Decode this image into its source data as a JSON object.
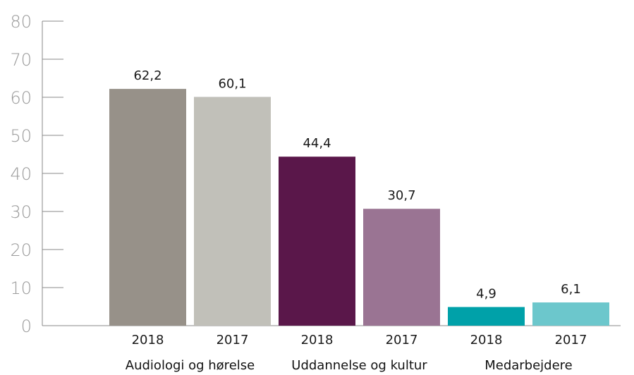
{
  "chart_data": {
    "type": "bar",
    "ylim": [
      0,
      80
    ],
    "yticks": [
      "0",
      "10",
      "20",
      "30",
      "40",
      "50",
      "60",
      "70",
      "80"
    ],
    "grid": false,
    "groups": [
      {
        "label": "Audiologi og hørelse",
        "bars": [
          {
            "year": "2018",
            "value": 62.2,
            "label": "62,2",
            "color": "#979189"
          },
          {
            "year": "2017",
            "value": 60.1,
            "label": "60,1",
            "color": "#c1c0b9"
          }
        ]
      },
      {
        "label": "Uddannelse og kultur",
        "bars": [
          {
            "year": "2018",
            "value": 44.4,
            "label": "44,4",
            "color": "#5a174a"
          },
          {
            "year": "2017",
            "value": 30.7,
            "label": "30,7",
            "color": "#9a7493"
          }
        ]
      },
      {
        "label": "Medarbejdere",
        "bars": [
          {
            "year": "2018",
            "value": 4.9,
            "label": "4,9",
            "color": "#00a1a9"
          },
          {
            "year": "2017",
            "value": 6.1,
            "label": "6,1",
            "color": "#6cc7cc"
          }
        ]
      }
    ]
  }
}
